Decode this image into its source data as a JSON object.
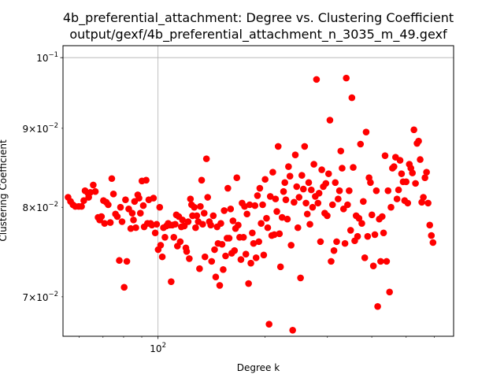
{
  "chart_data": {
    "type": "scatter",
    "title": "4b_preferential_attachment: Degree vs. Clustering Coefficient",
    "subtitle": "output/gexf/4b_preferential_attachment_n_3035_m_49.gexf",
    "xlabel": "Degree k",
    "ylabel": "Clustering Coefficient",
    "x_scale": "log",
    "y_scale": "log",
    "xlim": [
      54,
      680
    ],
    "ylim": [
      0.066,
      0.1018
    ],
    "x_ticks": [
      {
        "value": 100,
        "label": "10^2"
      }
    ],
    "y_ticks": [
      {
        "value": 0.07,
        "label": "7×10^-2"
      },
      {
        "value": 0.08,
        "label": "8×10^-2"
      },
      {
        "value": 0.09,
        "label": "9×10^-2"
      },
      {
        "value": 0.1,
        "label": "10^-1"
      }
    ],
    "grid": true,
    "legend": "none",
    "marker_color": "#ff0000",
    "series": [
      {
        "points": [
          [
            55.8,
            0.0812
          ],
          [
            56.7,
            0.0807
          ],
          [
            57.6,
            0.0803
          ],
          [
            58.5,
            0.0801
          ],
          [
            59.8,
            0.0801
          ],
          [
            60.9,
            0.0801
          ],
          [
            61.8,
            0.0808
          ],
          [
            62.3,
            0.082
          ],
          [
            63.5,
            0.0817
          ],
          [
            63.8,
            0.0812
          ],
          [
            64.5,
            0.0818
          ],
          [
            65.7,
            0.0827
          ],
          [
            66.6,
            0.0819
          ],
          [
            67.8,
            0.0788
          ],
          [
            68.5,
            0.0785
          ],
          [
            69.3,
            0.0789
          ],
          [
            70.2,
            0.0808
          ],
          [
            70.7,
            0.0781
          ],
          [
            71.5,
            0.0806
          ],
          [
            72.4,
            0.0803
          ],
          [
            73.4,
            0.0782
          ],
          [
            74.1,
            0.0835
          ],
          [
            74.9,
            0.0816
          ],
          [
            75.9,
            0.0792
          ],
          [
            76.8,
            0.0789
          ],
          [
            77.8,
            0.0739
          ],
          [
            78.4,
            0.08
          ],
          [
            79.2,
            0.0783
          ],
          [
            80.3,
            0.071
          ],
          [
            81.0,
            0.0809
          ],
          [
            81.7,
            0.0738
          ],
          [
            82.7,
            0.0798
          ],
          [
            83.8,
            0.0775
          ],
          [
            84.6,
            0.0793
          ],
          [
            85.3,
            0.0785
          ],
          [
            85.9,
            0.0807
          ],
          [
            86.6,
            0.0776
          ],
          [
            87.7,
            0.0815
          ],
          [
            88.4,
            0.0811
          ],
          [
            89.2,
            0.0793
          ],
          [
            90.1,
            0.0832
          ],
          [
            90.9,
            0.0802
          ],
          [
            91.4,
            0.0777
          ],
          [
            92.6,
            0.0833
          ],
          [
            93.4,
            0.0781
          ],
          [
            94.2,
            0.0809
          ],
          [
            95.3,
            0.0781
          ],
          [
            96.1,
            0.0779
          ],
          [
            97.1,
            0.0811
          ],
          [
            98.2,
            0.077
          ],
          [
            99.1,
            0.078
          ],
          [
            100.1,
            0.0751
          ],
          [
            101.1,
            0.08
          ],
          [
            101.7,
            0.0756
          ],
          [
            102.8,
            0.0743
          ],
          [
            103.6,
            0.0776
          ],
          [
            104.6,
            0.0765
          ],
          [
            105.6,
            0.0778
          ],
          [
            106.8,
            0.0781
          ],
          [
            107.9,
            0.0779
          ],
          [
            108.9,
            0.0716
          ],
          [
            109.7,
            0.0779
          ],
          [
            110.8,
            0.0765
          ],
          [
            111.8,
            0.078
          ],
          [
            112.6,
            0.0791
          ],
          [
            113.4,
            0.0755
          ],
          [
            114.4,
            0.0789
          ],
          [
            115.5,
            0.076
          ],
          [
            116.3,
            0.0777
          ],
          [
            117.2,
            0.0785
          ],
          [
            118.6,
            0.0778
          ],
          [
            119.8,
            0.0753
          ],
          [
            120.4,
            0.0749
          ],
          [
            121.6,
            0.0783
          ],
          [
            122.5,
            0.0741
          ],
          [
            123.4,
            0.081
          ],
          [
            124.3,
            0.0803
          ],
          [
            125.1,
            0.079
          ],
          [
            126.5,
            0.08
          ],
          [
            127.6,
            0.0776
          ],
          [
            128.6,
            0.079
          ],
          [
            129.8,
            0.0783
          ],
          [
            130.9,
            0.073
          ],
          [
            131.6,
            0.0801
          ],
          [
            132.7,
            0.0833
          ],
          [
            133.6,
            0.078
          ],
          [
            134.9,
            0.0793
          ],
          [
            135.6,
            0.0743
          ],
          [
            136.9,
            0.086
          ],
          [
            138.0,
            0.0812
          ],
          [
            139.5,
            0.0783
          ],
          [
            140.8,
            0.0779
          ],
          [
            141.6,
            0.0738
          ],
          [
            143.1,
            0.079
          ],
          [
            144.3,
            0.0751
          ],
          [
            145.4,
            0.0721
          ],
          [
            146.7,
            0.0777
          ],
          [
            147.6,
            0.0758
          ],
          [
            149.2,
            0.0712
          ],
          [
            150.3,
            0.0781
          ],
          [
            151.5,
            0.0757
          ],
          [
            152.6,
            0.0729
          ],
          [
            153.6,
            0.0796
          ],
          [
            155.0,
            0.0744
          ],
          [
            156.5,
            0.0764
          ],
          [
            157.3,
            0.0823
          ],
          [
            158.6,
            0.0764
          ],
          [
            160.1,
            0.0798
          ],
          [
            161.3,
            0.0747
          ],
          [
            162.6,
            0.0784
          ],
          [
            164.2,
            0.075
          ],
          [
            165.3,
            0.0775
          ],
          [
            166.7,
            0.0836
          ],
          [
            168.2,
            0.0779
          ],
          [
            169.8,
            0.0765
          ],
          [
            171.2,
            0.074
          ],
          [
            172.5,
            0.0805
          ],
          [
            174.1,
            0.0765
          ],
          [
            175.3,
            0.0801
          ],
          [
            176.8,
            0.0746
          ],
          [
            178.1,
            0.0792
          ],
          [
            179.9,
            0.0714
          ],
          [
            181.2,
            0.0803
          ],
          [
            182.6,
            0.0736
          ],
          [
            184.3,
            0.077
          ],
          [
            185.8,
            0.0758
          ],
          [
            187.5,
            0.0802
          ],
          [
            188.9,
            0.0742
          ],
          [
            190.6,
            0.0814
          ],
          [
            192.3,
            0.076
          ],
          [
            193.5,
            0.0823
          ],
          [
            195.2,
            0.0781
          ],
          [
            197.1,
            0.0803
          ],
          [
            198.5,
            0.0745
          ],
          [
            200.3,
            0.0834
          ],
          [
            202.1,
            0.0787
          ],
          [
            203.7,
            0.0776
          ],
          [
            205.5,
            0.0672
          ],
          [
            207.1,
            0.0813
          ],
          [
            209.1,
            0.0767
          ],
          [
            210.5,
            0.0843
          ],
          [
            212.6,
            0.0768
          ],
          [
            214.3,
            0.081
          ],
          [
            216.1,
            0.0795
          ],
          [
            218.0,
            0.0876
          ],
          [
            219.8,
            0.0769
          ],
          [
            221.3,
            0.0732
          ],
          [
            223.6,
            0.0788
          ],
          [
            225.7,
            0.0819
          ],
          [
            227.6,
            0.083
          ],
          [
            229.1,
            0.0809
          ],
          [
            231.4,
            0.0786
          ],
          [
            233.1,
            0.085
          ],
          [
            235.3,
            0.0838
          ],
          [
            237.1,
            0.0756
          ],
          [
            239.5,
            0.0666
          ],
          [
            241.6,
            0.0806
          ],
          [
            243.6,
            0.0865
          ],
          [
            245.8,
            0.0825
          ],
          [
            247.7,
            0.0776
          ],
          [
            249.6,
            0.0812
          ],
          [
            252.0,
            0.072
          ],
          [
            254.2,
            0.0839
          ],
          [
            256.7,
            0.0822
          ],
          [
            258.8,
            0.0876
          ],
          [
            261.1,
            0.0805
          ],
          [
            263.3,
            0.0792
          ],
          [
            265.7,
            0.083
          ],
          [
            267.8,
            0.078
          ],
          [
            270.2,
            0.0821
          ],
          [
            272.5,
            0.08
          ],
          [
            274.8,
            0.0853
          ],
          [
            277.3,
            0.0813
          ],
          [
            279.5,
            0.0968
          ],
          [
            282.2,
            0.0805
          ],
          [
            284.2,
            0.0817
          ],
          [
            286.8,
            0.076
          ],
          [
            289.2,
            0.0846
          ],
          [
            292.1,
            0.0825
          ],
          [
            294.8,
            0.0793
          ],
          [
            297.0,
            0.0829
          ],
          [
            299.6,
            0.079
          ],
          [
            302.3,
            0.0841
          ],
          [
            304.9,
            0.0911
          ],
          [
            307.3,
            0.0738
          ],
          [
            310.1,
            0.0803
          ],
          [
            313.0,
            0.075
          ],
          [
            315.7,
            0.083
          ],
          [
            318.5,
            0.076
          ],
          [
            321.6,
            0.081
          ],
          [
            324.4,
            0.082
          ],
          [
            327.2,
            0.087
          ],
          [
            330.0,
            0.0848
          ],
          [
            333.1,
            0.0798
          ],
          [
            336.2,
            0.0758
          ],
          [
            339.0,
            0.097
          ],
          [
            341.9,
            0.0803
          ],
          [
            345.4,
            0.082
          ],
          [
            348.7,
            0.0773
          ],
          [
            351.6,
            0.0942
          ],
          [
            354.6,
            0.0849
          ],
          [
            358.1,
            0.0761
          ],
          [
            361.4,
            0.079
          ],
          [
            364.8,
            0.0766
          ],
          [
            368.1,
            0.0787
          ],
          [
            371.8,
            0.0879
          ],
          [
            375.0,
            0.0781
          ],
          [
            378.6,
            0.0807
          ],
          [
            382.2,
            0.0742
          ],
          [
            385.6,
            0.0895
          ],
          [
            389.4,
            0.0766
          ],
          [
            393.0,
            0.0836
          ],
          [
            396.6,
            0.083
          ],
          [
            400.3,
            0.0791
          ],
          [
            404.2,
            0.0733
          ],
          [
            408.1,
            0.0768
          ],
          [
            412.0,
            0.082
          ],
          [
            415.6,
            0.069
          ],
          [
            419.9,
            0.0786
          ],
          [
            423.7,
            0.0738
          ],
          [
            427.9,
            0.0789
          ],
          [
            431.8,
            0.077
          ],
          [
            436.0,
            0.0864
          ],
          [
            440.3,
            0.0738
          ],
          [
            444.5,
            0.082
          ],
          [
            448.9,
            0.0705
          ],
          [
            453.1,
            0.08
          ],
          [
            457.4,
            0.0848
          ],
          [
            462.0,
            0.085
          ],
          [
            466.7,
            0.0862
          ],
          [
            471.1,
            0.081
          ],
          [
            475.8,
            0.0821
          ],
          [
            480.5,
            0.0858
          ],
          [
            485.2,
            0.0841
          ],
          [
            490.1,
            0.0831
          ],
          [
            495.0,
            0.0808
          ],
          [
            499.9,
            0.0831
          ],
          [
            505.1,
            0.0805
          ],
          [
            510.3,
            0.0853
          ],
          [
            515.4,
            0.0848
          ],
          [
            520.6,
            0.0842
          ],
          [
            525.8,
            0.0898
          ],
          [
            531.1,
            0.0829
          ],
          [
            536.5,
            0.088
          ],
          [
            541.9,
            0.0883
          ],
          [
            547.5,
            0.0859
          ],
          [
            553.2,
            0.0806
          ],
          [
            558.9,
            0.0812
          ],
          [
            564.7,
            0.0836
          ],
          [
            570.6,
            0.0843
          ],
          [
            576.4,
            0.0805
          ],
          [
            582.5,
            0.0779
          ],
          [
            588.7,
            0.0767
          ],
          [
            594.9,
            0.0759
          ]
        ]
      }
    ]
  }
}
